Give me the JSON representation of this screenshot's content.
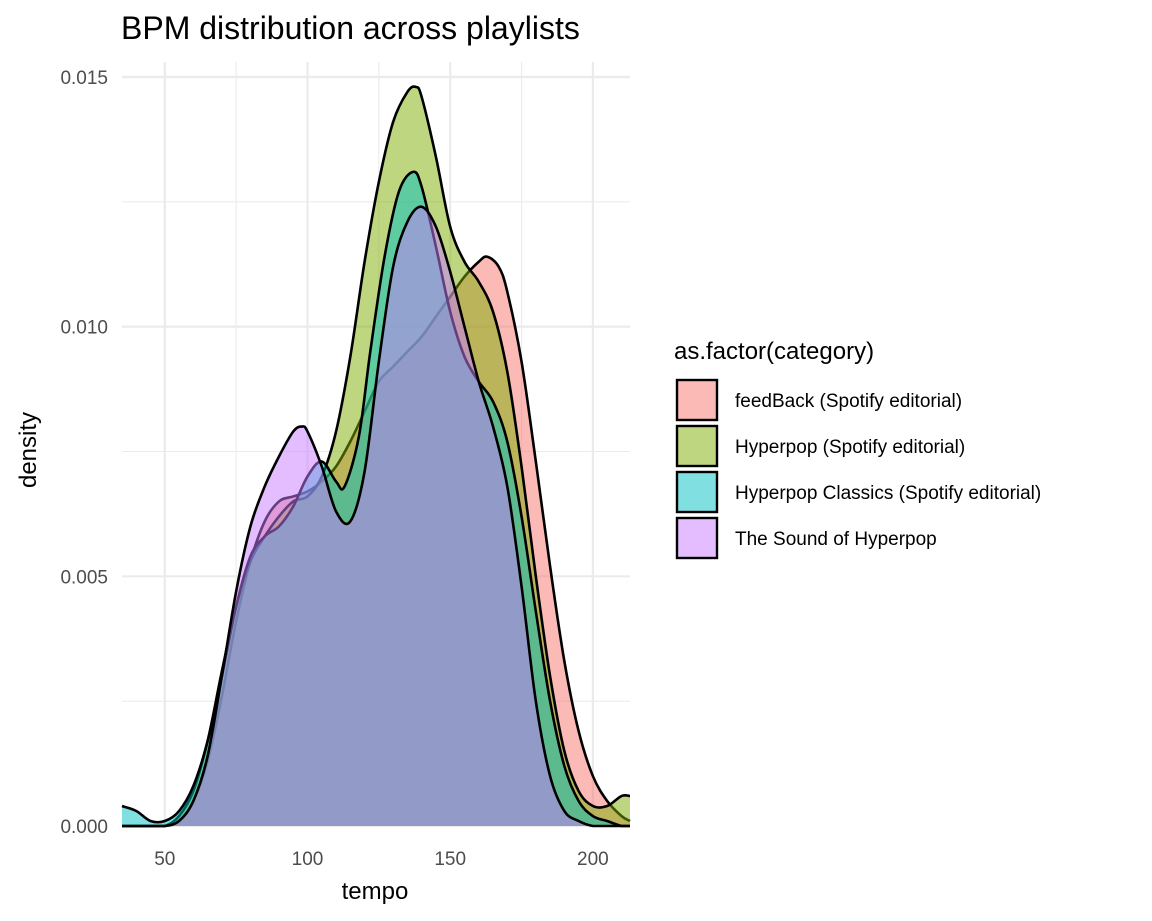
{
  "chart_data": {
    "type": "area",
    "subtype": "density",
    "title": "BPM distribution across playlists",
    "xlabel": "tempo",
    "ylabel": "density",
    "xlim": [
      35,
      213
    ],
    "ylim": [
      0,
      0.0153
    ],
    "x_ticks": [
      50,
      100,
      150,
      200
    ],
    "x_tick_labels": [
      "50",
      "100",
      "150",
      "200"
    ],
    "y_ticks": [
      0,
      0.005,
      0.01,
      0.015
    ],
    "y_tick_labels": [
      "0.000",
      "0.005",
      "0.010",
      "0.015"
    ],
    "grid": true,
    "legend_title": "as.factor(category)",
    "legend_position": "right",
    "fill_opacity": 0.5,
    "series": [
      {
        "name": "feedBack (Spotify editorial)",
        "color": "#F8766D",
        "x": [
          35,
          45,
          50,
          55,
          60,
          65,
          70,
          75,
          80,
          85,
          90,
          95,
          100,
          105,
          110,
          115,
          120,
          125,
          130,
          135,
          140,
          145,
          150,
          155,
          160,
          163,
          167,
          170,
          175,
          180,
          185,
          190,
          195,
          200,
          205,
          210,
          213
        ],
        "y": [
          0,
          0,
          0,
          0.0001,
          0.0005,
          0.0013,
          0.0026,
          0.0041,
          0.0053,
          0.0061,
          0.0065,
          0.0066,
          0.0067,
          0.0069,
          0.0072,
          0.0077,
          0.0083,
          0.0089,
          0.0092,
          0.0095,
          0.0098,
          0.0102,
          0.0106,
          0.011,
          0.0113,
          0.0114,
          0.0112,
          0.0107,
          0.0093,
          0.0073,
          0.0052,
          0.0033,
          0.0019,
          0.001,
          0.0005,
          0.0002,
          0.0001
        ]
      },
      {
        "name": "Hyperpop (Spotify editorial)",
        "color": "#7CAE00",
        "x": [
          35,
          45,
          50,
          55,
          60,
          65,
          70,
          75,
          80,
          85,
          90,
          95,
          100,
          105,
          110,
          115,
          120,
          125,
          130,
          135,
          138,
          140,
          145,
          150,
          155,
          160,
          165,
          170,
          175,
          180,
          185,
          190,
          195,
          200,
          205,
          210,
          213
        ],
        "y": [
          0,
          0,
          0,
          0.0002,
          0.0007,
          0.0017,
          0.0031,
          0.0044,
          0.0053,
          0.0058,
          0.0062,
          0.0065,
          0.0066,
          0.007,
          0.0079,
          0.0094,
          0.0113,
          0.0129,
          0.0141,
          0.0147,
          0.0148,
          0.0146,
          0.0134,
          0.012,
          0.0113,
          0.0109,
          0.0103,
          0.0091,
          0.0072,
          0.005,
          0.003,
          0.0015,
          0.0007,
          0.0004,
          0.0004,
          0.0006,
          0.0006
        ]
      },
      {
        "name": "Hyperpop Classics (Spotify editorial)",
        "color": "#00BFC4",
        "x": [
          35,
          40,
          45,
          50,
          55,
          60,
          65,
          70,
          75,
          80,
          85,
          90,
          95,
          100,
          105,
          110,
          113,
          118,
          122,
          127,
          132,
          137,
          140,
          145,
          150,
          155,
          160,
          165,
          170,
          175,
          180,
          185,
          190,
          195,
          200,
          205,
          210,
          213
        ],
        "y": [
          0.0004,
          0.0003,
          0.0001,
          0.0001,
          0.0003,
          0.0008,
          0.0017,
          0.003,
          0.0044,
          0.0054,
          0.0058,
          0.006,
          0.0064,
          0.007,
          0.0073,
          0.0069,
          0.0068,
          0.0078,
          0.0095,
          0.0114,
          0.0127,
          0.0131,
          0.0128,
          0.0116,
          0.0103,
          0.0094,
          0.0089,
          0.0085,
          0.0077,
          0.0062,
          0.0043,
          0.0025,
          0.0012,
          0.0005,
          0.0002,
          0.0001,
          0,
          0
        ]
      },
      {
        "name": "The Sound of Hyperpop",
        "color": "#C77CFF",
        "x": [
          35,
          45,
          50,
          55,
          60,
          65,
          70,
          75,
          80,
          85,
          90,
          95,
          98,
          100,
          105,
          110,
          115,
          120,
          125,
          130,
          135,
          140,
          145,
          150,
          155,
          160,
          165,
          170,
          175,
          180,
          185,
          190,
          195,
          200,
          205,
          210,
          213
        ],
        "y": [
          0,
          0,
          0,
          0.0001,
          0.0005,
          0.0014,
          0.003,
          0.0047,
          0.006,
          0.0068,
          0.0074,
          0.0079,
          0.008,
          0.0079,
          0.0072,
          0.0063,
          0.0061,
          0.0071,
          0.0093,
          0.0112,
          0.0121,
          0.0124,
          0.012,
          0.0111,
          0.01,
          0.0089,
          0.008,
          0.0068,
          0.0048,
          0.0025,
          0.001,
          0.0003,
          0.0001,
          0,
          0,
          0,
          0
        ]
      }
    ]
  }
}
